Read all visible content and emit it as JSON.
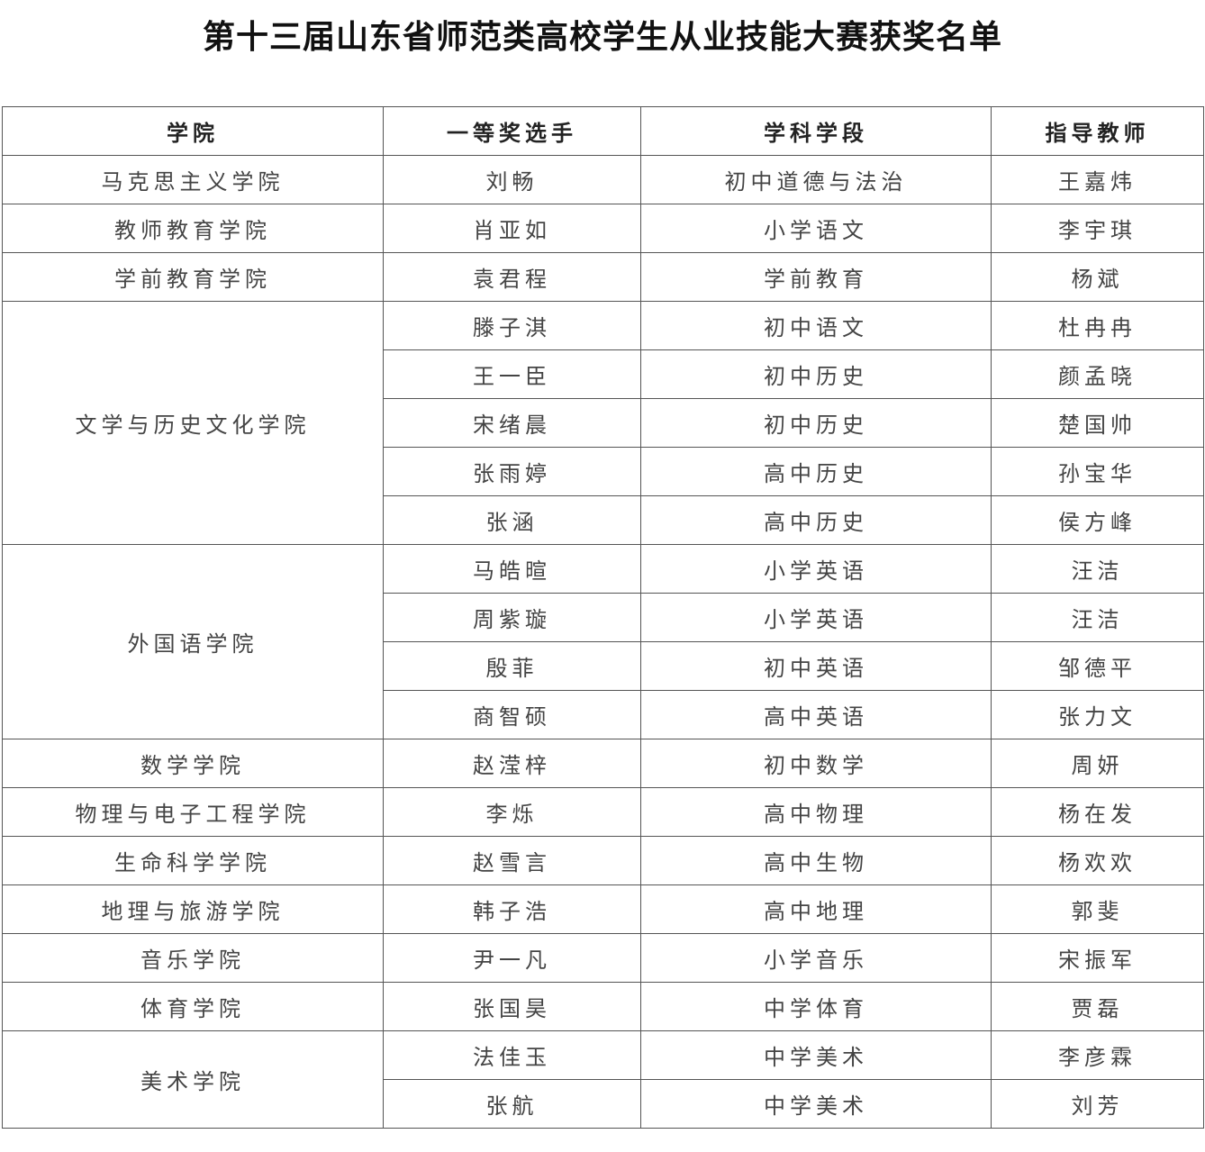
{
  "title": "第十三届山东省师范类高校学生从业技能大赛获奖名单",
  "table": {
    "headers": [
      "学院",
      "一等奖选手",
      "学科学段",
      "指导教师"
    ],
    "groups": [
      {
        "college": "马克思主义学院",
        "rows": [
          [
            "刘畅",
            "初中道德与法治",
            "王嘉炜"
          ]
        ]
      },
      {
        "college": "教师教育学院",
        "rows": [
          [
            "肖亚如",
            "小学语文",
            "李宇琪"
          ]
        ]
      },
      {
        "college": "学前教育学院",
        "rows": [
          [
            "袁君程",
            "学前教育",
            "杨斌"
          ]
        ]
      },
      {
        "college": "文学与历史文化学院",
        "rows": [
          [
            "滕子淇",
            "初中语文",
            "杜冉冉"
          ],
          [
            "王一臣",
            "初中历史",
            "颜孟晓"
          ],
          [
            "宋绪晨",
            "初中历史",
            "楚国帅"
          ],
          [
            "张雨婷",
            "高中历史",
            "孙宝华"
          ],
          [
            "张涵",
            "高中历史",
            "侯方峰"
          ]
        ]
      },
      {
        "college": "外国语学院",
        "rows": [
          [
            "马皓暄",
            "小学英语",
            "汪洁"
          ],
          [
            "周紫璇",
            "小学英语",
            "汪洁"
          ],
          [
            "殷菲",
            "初中英语",
            "邹德平"
          ],
          [
            "商智硕",
            "高中英语",
            "张力文"
          ]
        ]
      },
      {
        "college": "数学学院",
        "rows": [
          [
            "赵滢梓",
            "初中数学",
            "周妍"
          ]
        ]
      },
      {
        "college": "物理与电子工程学院",
        "rows": [
          [
            "李烁",
            "高中物理",
            "杨在发"
          ]
        ]
      },
      {
        "college": "生命科学学院",
        "rows": [
          [
            "赵雪言",
            "高中生物",
            "杨欢欢"
          ]
        ]
      },
      {
        "college": "地理与旅游学院",
        "rows": [
          [
            "韩子浩",
            "高中地理",
            "郭斐"
          ]
        ]
      },
      {
        "college": "音乐学院",
        "rows": [
          [
            "尹一凡",
            "小学音乐",
            "宋振军"
          ]
        ]
      },
      {
        "college": "体育学院",
        "rows": [
          [
            "张国昊",
            "中学体育",
            "贾磊"
          ]
        ]
      },
      {
        "college": "美术学院",
        "rows": [
          [
            "法佳玉",
            "中学美术",
            "李彦霖"
          ],
          [
            "张航",
            "中学美术",
            "刘芳"
          ]
        ]
      }
    ]
  }
}
